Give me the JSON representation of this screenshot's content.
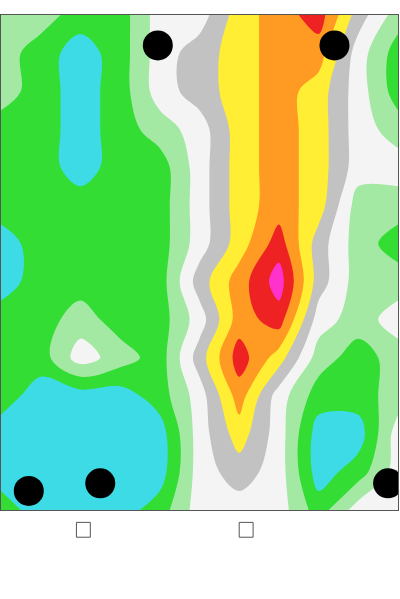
{
  "chart_data": {
    "type": "contour",
    "x": [
      0,
      1,
      2,
      3,
      4,
      5,
      6,
      7,
      8,
      9,
      10
    ],
    "y": [
      0,
      1,
      2,
      3,
      4,
      5,
      6,
      7,
      8,
      9,
      10,
      11,
      12,
      13
    ],
    "z": [
      [
        3,
        3,
        2,
        2,
        4,
        4,
        6,
        7,
        8,
        5,
        3
      ],
      [
        3,
        2,
        1,
        2,
        4,
        5,
        6,
        7,
        7,
        4,
        2
      ],
      [
        3,
        2,
        1,
        2,
        4,
        5,
        6,
        7,
        6,
        4,
        2
      ],
      [
        2,
        2,
        1,
        2,
        3,
        4,
        6,
        7,
        6,
        4,
        3
      ],
      [
        2,
        2,
        1,
        2,
        2,
        4,
        6,
        7,
        6,
        4,
        4
      ],
      [
        2,
        2,
        2,
        2,
        2,
        4,
        6,
        7,
        6,
        3,
        3
      ],
      [
        1,
        2,
        2,
        2,
        2,
        4,
        6,
        8,
        5,
        3,
        2
      ],
      [
        1,
        2,
        2,
        2,
        2,
        5,
        7,
        9,
        5,
        3,
        3
      ],
      [
        2,
        2,
        3,
        2,
        2,
        4,
        7,
        8,
        4,
        3,
        4
      ],
      [
        2,
        2,
        4,
        3,
        2,
        5,
        8,
        6,
        3,
        2,
        3
      ],
      [
        2,
        1,
        1,
        1,
        2,
        4,
        7,
        4,
        2,
        2,
        3
      ],
      [
        1,
        1,
        1,
        1,
        1,
        4,
        6,
        4,
        1,
        1,
        4
      ],
      [
        1,
        1,
        1,
        1,
        1,
        4,
        5,
        4,
        1,
        2,
        4
      ],
      [
        2,
        1,
        1,
        1,
        2,
        4,
        4,
        4,
        2,
        4,
        4
      ]
    ],
    "zlim": [
      0.5,
      9.5
    ],
    "colors": [
      "#3ddbe6",
      "#33dd33",
      "#a3e8a3",
      "#f4f4f4",
      "#c2c2c2",
      "#ffee33",
      "#ff9a22",
      "#ee2222",
      "#ff33cc"
    ],
    "xlim": [
      0,
      10
    ],
    "ylim": [
      13,
      0
    ],
    "tick_labels": false,
    "grid": false,
    "supports": {
      "x": [
        3.95,
        8.4,
        0.7,
        2.5,
        9.75
      ],
      "y": [
        0.8,
        0.8,
        12.5,
        12.3,
        12.3
      ],
      "color": "#000000",
      "marker": "circle"
    }
  }
}
